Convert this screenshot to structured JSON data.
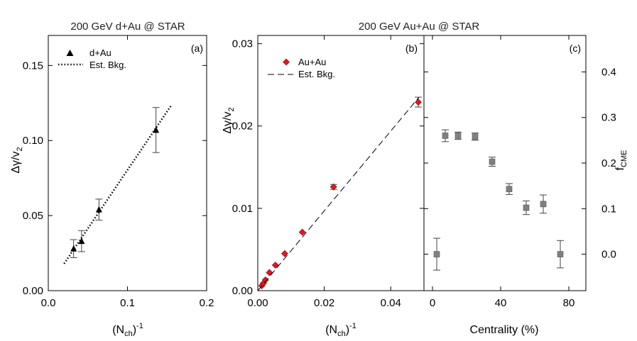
{
  "chart_data": [
    {
      "type": "scatter",
      "panel": "a",
      "title": "200 GeV  d+Au @ STAR",
      "panel_label": "(a)",
      "xlabel": {
        "main": "(N",
        "sub": "ch",
        "close": ")",
        "sup": "-1"
      },
      "ylabel": {
        "main": "Δγ/v",
        "sub": "2"
      },
      "xlim": [
        0,
        0.2
      ],
      "ylim": [
        0,
        0.17
      ],
      "xticks": [
        0,
        0.1,
        0.2
      ],
      "xtick_labels": [
        "0.0",
        "0.1",
        "0.2"
      ],
      "yticks": [
        0,
        0.05,
        0.1,
        0.15
      ],
      "ytick_labels": [
        "0.00",
        "0.05",
        "0.10",
        "0.15"
      ],
      "legend": {
        "position": "top-left",
        "entries": [
          {
            "label": "d+Au",
            "marker": "triangle"
          },
          {
            "label": "Est. Bkg.",
            "line": "dotted"
          }
        ]
      },
      "series": [
        {
          "name": "d+Au",
          "marker": "triangle",
          "color": "#000000",
          "points": [
            {
              "x": 0.032,
              "y": 0.028,
              "err": 0.006
            },
            {
              "x": 0.042,
              "y": 0.033,
              "err": 0.007
            },
            {
              "x": 0.064,
              "y": 0.054,
              "err": 0.007
            },
            {
              "x": 0.136,
              "y": 0.107,
              "err": 0.015
            }
          ]
        },
        {
          "name": "Est. Bkg.",
          "line": "dotted",
          "color": "#000000",
          "x": [
            0.02,
            0.156
          ],
          "y": [
            0.018,
            0.124
          ]
        }
      ]
    },
    {
      "type": "scatter",
      "panel": "b",
      "title": "200 GeV  Au+Au @ STAR",
      "panel_label": "(b)",
      "xlabel": {
        "main": "(N",
        "sub": "ch",
        "close": ")",
        "sup": "-1"
      },
      "ylabel": {
        "main": "Δγ/v",
        "sub": "2"
      },
      "xlim": [
        0,
        0.05
      ],
      "ylim": [
        0,
        0.031
      ],
      "xticks": [
        0,
        0.02,
        0.04
      ],
      "xtick_labels": [
        "0.00",
        "0.02",
        "0.04"
      ],
      "yticks": [
        0,
        0.01,
        0.02,
        0.03
      ],
      "ytick_labels": [
        "0.00",
        "0.01",
        "0.02",
        "0.03"
      ],
      "legend": {
        "position": "top-left",
        "entries": [
          {
            "label": "Au+Au",
            "marker": "diamond"
          },
          {
            "label": "Est. Bkg.",
            "line": "dashed"
          }
        ]
      },
      "series": [
        {
          "name": "Au+Au",
          "marker": "diamond",
          "color": "#e8141e",
          "points": [
            {
              "x": 0.0012,
              "y": 0.0006,
              "err": 0
            },
            {
              "x": 0.0017,
              "y": 0.0009,
              "err": 0
            },
            {
              "x": 0.0023,
              "y": 0.0013,
              "err": 0
            },
            {
              "x": 0.0035,
              "y": 0.0022,
              "err": 0
            },
            {
              "x": 0.0053,
              "y": 0.0031,
              "err": 0
            },
            {
              "x": 0.0081,
              "y": 0.0045,
              "err": 0
            },
            {
              "x": 0.0134,
              "y": 0.0071,
              "err": 0
            },
            {
              "x": 0.0228,
              "y": 0.0126,
              "err": 0.0003
            },
            {
              "x": 0.0483,
              "y": 0.0229,
              "err": 0.0006
            }
          ]
        },
        {
          "name": "Est. Bkg.",
          "line": "dashed",
          "color": "#000000",
          "x": [
            0,
            0.0485
          ],
          "y": [
            0,
            0.0235
          ]
        }
      ]
    },
    {
      "type": "scatter",
      "panel": "c",
      "panel_label": "(c)",
      "xlabel": "Centrality (%)",
      "ylabel": {
        "main": "f",
        "sub": "CME"
      },
      "xlim": [
        -5,
        90
      ],
      "ylim": [
        -0.08,
        0.48
      ],
      "xticks": [
        0,
        40,
        80
      ],
      "xtick_labels": [
        "0",
        "40",
        "80"
      ],
      "yticks": [
        0,
        0.1,
        0.2,
        0.3,
        0.4
      ],
      "ytick_labels": [
        "0.0",
        "0.1",
        "0.2",
        "0.3",
        "0.4"
      ],
      "y_axis_side": "right",
      "series": [
        {
          "name": "f_CME",
          "marker": "square",
          "color": "#808080",
          "points": [
            {
              "x": 2.5,
              "y": 0.0,
              "err": 0.035
            },
            {
              "x": 7.5,
              "y": 0.26,
              "err": 0.013
            },
            {
              "x": 15,
              "y": 0.26,
              "err": 0.008
            },
            {
              "x": 25,
              "y": 0.258,
              "err": 0.008
            },
            {
              "x": 35,
              "y": 0.203,
              "err": 0.01
            },
            {
              "x": 45,
              "y": 0.143,
              "err": 0.012
            },
            {
              "x": 55,
              "y": 0.102,
              "err": 0.015
            },
            {
              "x": 65,
              "y": 0.11,
              "err": 0.02
            },
            {
              "x": 75,
              "y": 0.0,
              "err": 0.03
            }
          ]
        }
      ]
    }
  ]
}
